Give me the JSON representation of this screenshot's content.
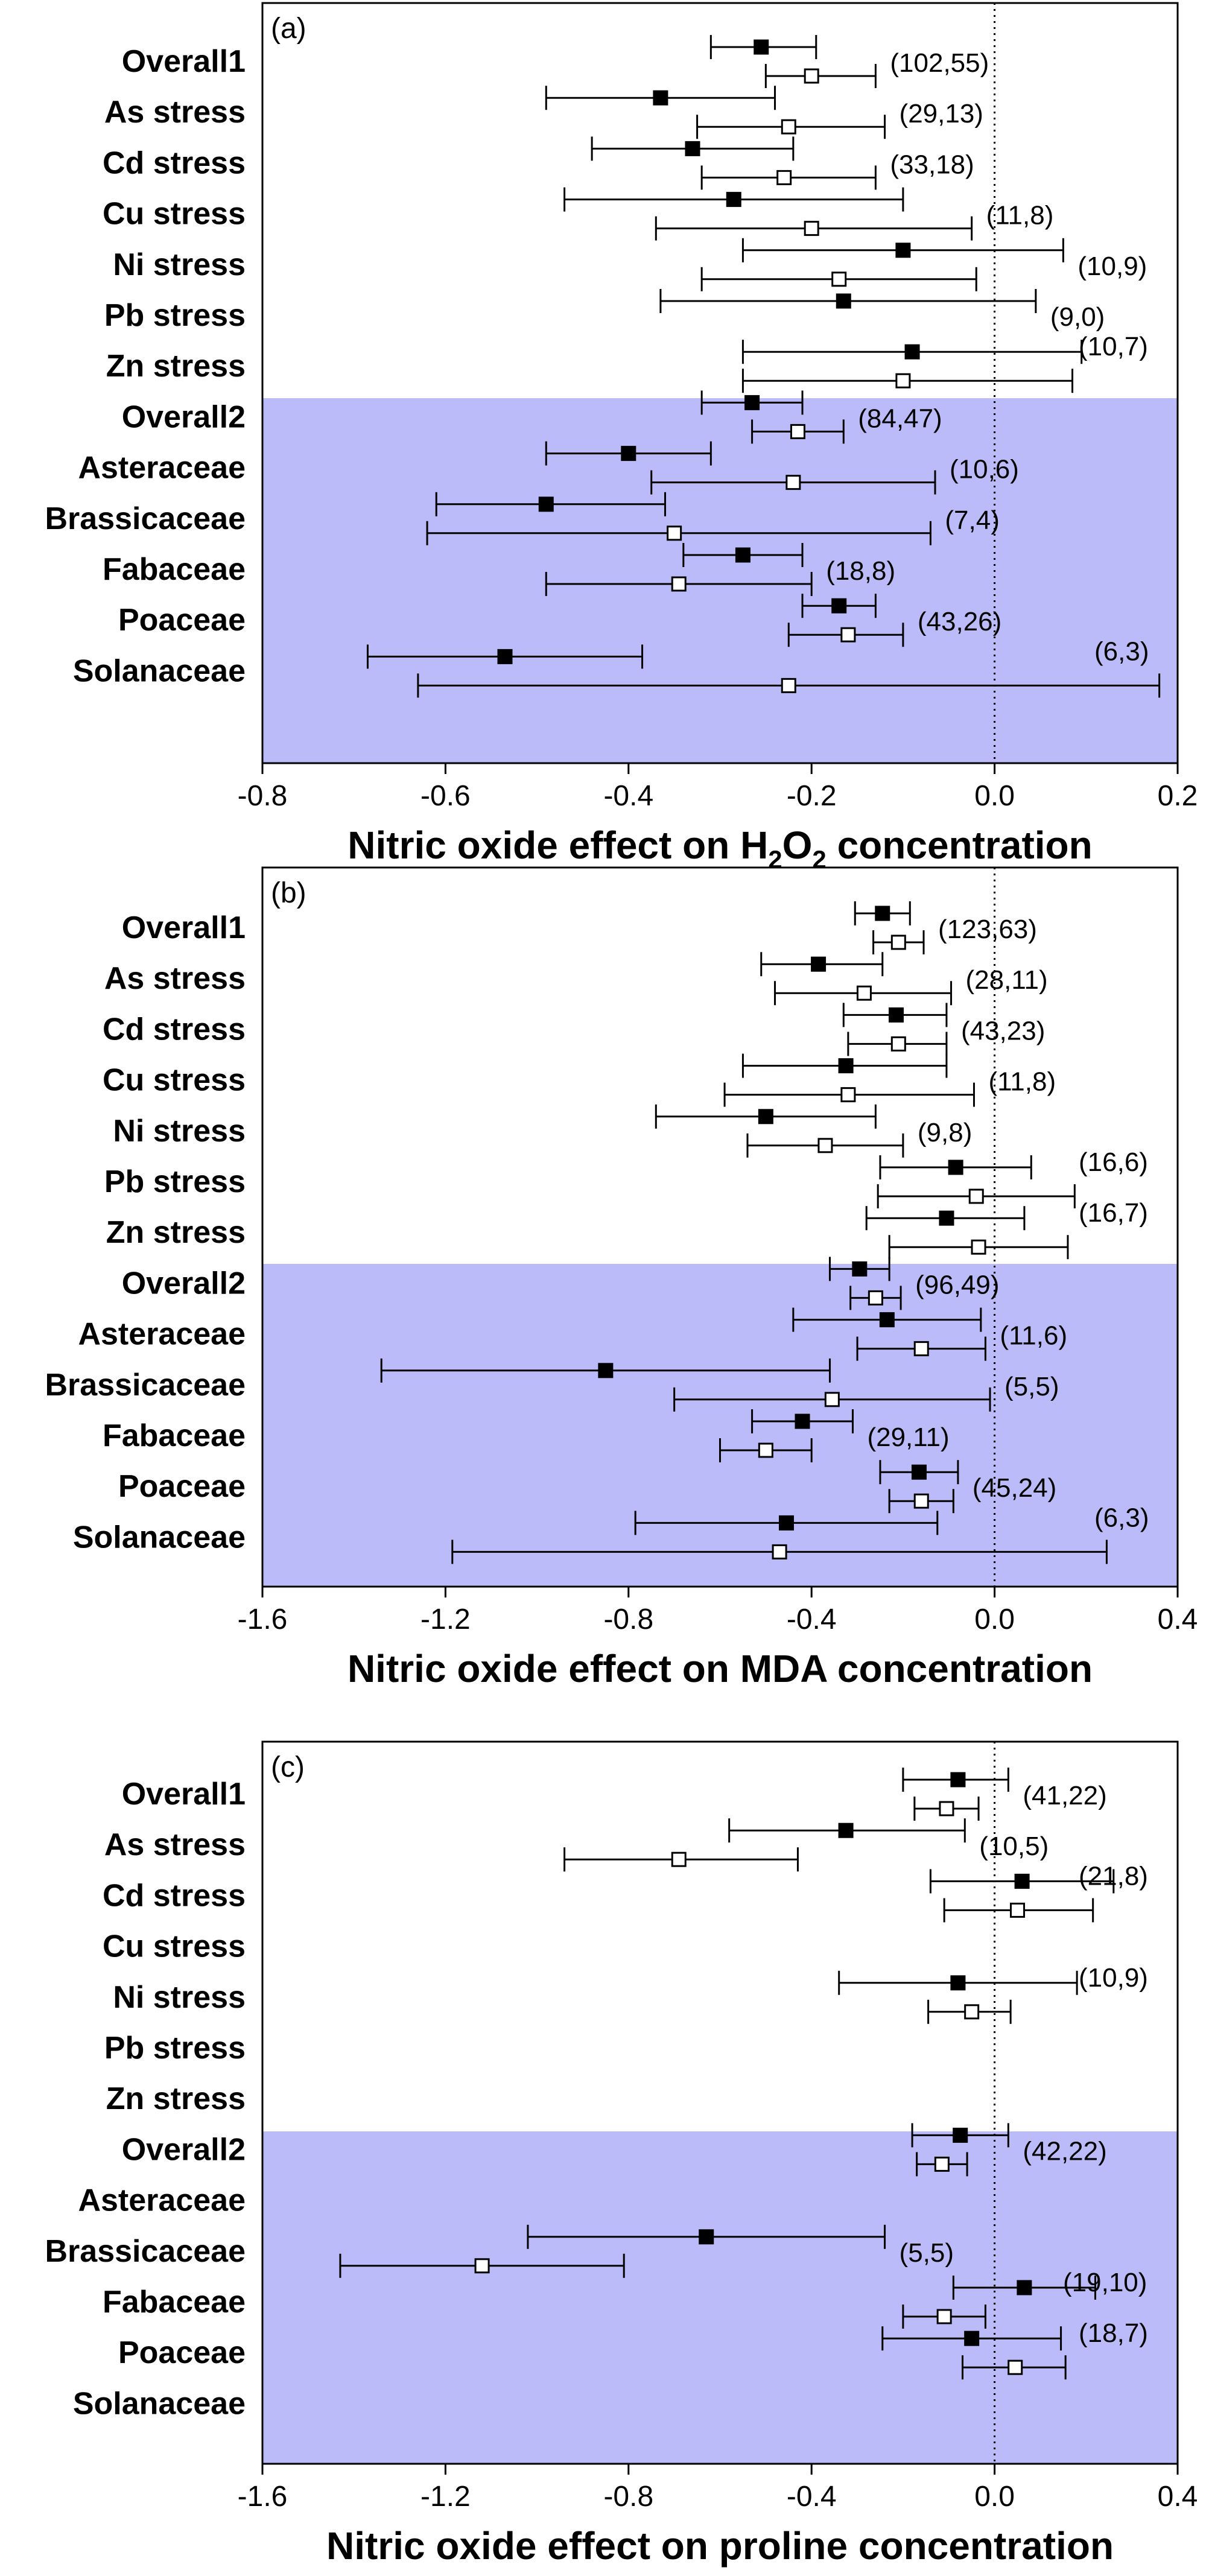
{
  "shade_color": "#bbbbf9",
  "mean_a_marker": "filled-square",
  "mean_b_marker": "open-square",
  "chart_data": [
    {
      "type": "forest",
      "panel_label": "(a)",
      "xlabel": "Nitric oxide effect on H2O2 concentration",
      "xlabel_parts": [
        "Nitric oxide effect on H",
        "2",
        "O",
        "2",
        " concentration"
      ],
      "xlim": [
        -0.8,
        0.2
      ],
      "ticks": [
        -0.8,
        -0.6,
        -0.4,
        -0.2,
        0.0,
        0.2
      ],
      "tick_labels": [
        "-0.8",
        "-0.6",
        "-0.4",
        "-0.2",
        "0.0",
        "0.2"
      ],
      "reference_line": 0,
      "shaded_from_row": 7,
      "rows": [
        {
          "label": "Overall1",
          "a": [
            -0.255,
            -0.31,
            -0.195
          ],
          "b": [
            -0.2,
            -0.25,
            -0.13
          ],
          "count": "(102,55)"
        },
        {
          "label": "As stress",
          "a": [
            -0.365,
            -0.49,
            -0.24
          ],
          "b": [
            -0.225,
            -0.325,
            -0.12
          ],
          "count": "(29,13)"
        },
        {
          "label": "Cd stress",
          "a": [
            -0.33,
            -0.44,
            -0.22
          ],
          "b": [
            -0.23,
            -0.32,
            -0.13
          ],
          "count": "(33,18)"
        },
        {
          "label": "Cu stress",
          "a": [
            -0.285,
            -0.47,
            -0.1
          ],
          "b": [
            -0.2,
            -0.37,
            -0.025
          ],
          "count": "(11,8)"
        },
        {
          "label": "Ni stress",
          "a": [
            -0.1,
            -0.275,
            0.075
          ],
          "b": [
            -0.17,
            -0.32,
            -0.02
          ],
          "count": "(10,9)"
        },
        {
          "label": "Pb stress",
          "a": [
            -0.165,
            -0.365,
            0.045
          ],
          "b": null,
          "count": "(9,0)"
        },
        {
          "label": "Zn stress",
          "a": [
            -0.09,
            -0.275,
            0.095
          ],
          "b": [
            -0.1,
            -0.275,
            0.085
          ],
          "count": "(10,7)"
        },
        {
          "label": "Overall2",
          "a": [
            -0.265,
            -0.32,
            -0.21
          ],
          "b": [
            -0.215,
            -0.265,
            -0.165
          ],
          "count": "(84,47)"
        },
        {
          "label": "Asteraceae",
          "a": [
            -0.4,
            -0.49,
            -0.31
          ],
          "b": [
            -0.22,
            -0.375,
            -0.065
          ],
          "count": "(10,6)"
        },
        {
          "label": "Brassicaceae",
          "a": [
            -0.49,
            -0.61,
            -0.36
          ],
          "b": [
            -0.35,
            -0.62,
            -0.07
          ],
          "count": "(7,4)"
        },
        {
          "label": "Fabaceae",
          "a": [
            -0.275,
            -0.34,
            -0.21
          ],
          "b": [
            -0.345,
            -0.49,
            -0.2
          ],
          "count": "(18,8)"
        },
        {
          "label": "Poaceae",
          "a": [
            -0.17,
            -0.21,
            -0.13
          ],
          "b": [
            -0.16,
            -0.225,
            -0.1
          ],
          "count": "(43,26)"
        },
        {
          "label": "Solanaceae",
          "a": [
            -0.535,
            -0.685,
            -0.385
          ],
          "b": [
            -0.225,
            -0.63,
            0.18
          ],
          "count": "(6,3)"
        }
      ]
    },
    {
      "type": "forest",
      "panel_label": "(b)",
      "xlabel": "Nitric oxide effect on MDA concentration",
      "xlabel_parts": [
        "Nitric oxide effect on MDA concentration"
      ],
      "xlim": [
        -1.6,
        0.4
      ],
      "ticks": [
        -1.6,
        -1.2,
        -0.8,
        -0.4,
        0.0,
        0.4
      ],
      "tick_labels": [
        "-1.6",
        "-1.2",
        "-0.8",
        "-0.4",
        "0.0",
        "0.4"
      ],
      "reference_line": 0,
      "shaded_from_row": 7,
      "rows": [
        {
          "label": "Overall1",
          "a": [
            -0.245,
            -0.305,
            -0.185
          ],
          "b": [
            -0.21,
            -0.265,
            -0.155
          ],
          "count": "(123,63)"
        },
        {
          "label": "As stress",
          "a": [
            -0.385,
            -0.51,
            -0.245
          ],
          "b": [
            -0.285,
            -0.48,
            -0.095
          ],
          "count": "(28,11)"
        },
        {
          "label": "Cd stress",
          "a": [
            -0.215,
            -0.33,
            -0.105
          ],
          "b": [
            -0.21,
            -0.32,
            -0.105
          ],
          "count": "(43,23)"
        },
        {
          "label": "Cu stress",
          "a": [
            -0.325,
            -0.55,
            -0.105
          ],
          "b": [
            -0.32,
            -0.59,
            -0.045
          ],
          "count": "(11,8)"
        },
        {
          "label": "Ni stress",
          "a": [
            -0.5,
            -0.74,
            -0.26
          ],
          "b": [
            -0.37,
            -0.54,
            -0.2
          ],
          "count": "(9,8)"
        },
        {
          "label": "Pb stress",
          "a": [
            -0.085,
            -0.25,
            0.08
          ],
          "b": [
            -0.04,
            -0.255,
            0.175
          ],
          "count": "(16,6)"
        },
        {
          "label": "Zn stress",
          "a": [
            -0.105,
            -0.28,
            0.065
          ],
          "b": [
            -0.035,
            -0.23,
            0.16
          ],
          "count": "(16,7)"
        },
        {
          "label": "Overall2",
          "a": [
            -0.295,
            -0.36,
            -0.23
          ],
          "b": [
            -0.26,
            -0.315,
            -0.205
          ],
          "count": "(96,49)"
        },
        {
          "label": "Asteraceae",
          "a": [
            -0.235,
            -0.44,
            -0.03
          ],
          "b": [
            -0.16,
            -0.3,
            -0.02
          ],
          "count": "(11,6)"
        },
        {
          "label": "Brassicaceae",
          "a": [
            -0.85,
            -1.34,
            -0.36
          ],
          "b": [
            -0.355,
            -0.7,
            -0.01
          ],
          "count": "(5,5)"
        },
        {
          "label": "Fabaceae",
          "a": [
            -0.42,
            -0.53,
            -0.31
          ],
          "b": [
            -0.5,
            -0.6,
            -0.4
          ],
          "count": "(29,11)"
        },
        {
          "label": "Poaceae",
          "a": [
            -0.165,
            -0.25,
            -0.08
          ],
          "b": [
            -0.16,
            -0.23,
            -0.09
          ],
          "count": "(45,24)"
        },
        {
          "label": "Solanaceae",
          "a": [
            -0.455,
            -0.785,
            -0.125
          ],
          "b": [
            -0.47,
            -1.185,
            0.245
          ],
          "count": "(6,3)"
        }
      ]
    },
    {
      "type": "forest",
      "panel_label": "(c)",
      "xlabel": "Nitric oxide effect on proline concentration",
      "xlabel_parts": [
        "Nitric oxide effect on proline concentration"
      ],
      "xlim": [
        -1.6,
        0.4
      ],
      "ticks": [
        -1.6,
        -1.2,
        -0.8,
        -0.4,
        0.0,
        0.4
      ],
      "tick_labels": [
        "-1.6",
        "-1.2",
        "-0.8",
        "-0.4",
        "0.0",
        "0.4"
      ],
      "reference_line": 0,
      "shaded_from_row": 7,
      "rows": [
        {
          "label": "Overall1",
          "a": [
            -0.08,
            -0.2,
            0.03
          ],
          "b": [
            -0.105,
            -0.175,
            -0.035
          ],
          "count": "(41,22)"
        },
        {
          "label": "As stress",
          "a": [
            -0.325,
            -0.58,
            -0.065
          ],
          "b": [
            -0.69,
            -0.94,
            -0.43
          ],
          "count": "(10,5)"
        },
        {
          "label": "Cd stress",
          "a": [
            0.06,
            -0.14,
            0.26
          ],
          "b": [
            0.05,
            -0.11,
            0.215
          ],
          "count": "(21,8)"
        },
        {
          "label": "Cu stress",
          "a": null,
          "b": null,
          "count": ""
        },
        {
          "label": "Ni stress",
          "a": [
            -0.08,
            -0.34,
            0.18
          ],
          "b": [
            -0.05,
            -0.145,
            0.035
          ],
          "count": "(10,9)"
        },
        {
          "label": "Pb stress",
          "a": null,
          "b": null,
          "count": ""
        },
        {
          "label": "Zn stress",
          "a": null,
          "b": null,
          "count": ""
        },
        {
          "label": "Overall2",
          "a": [
            -0.075,
            -0.18,
            0.03
          ],
          "b": [
            -0.115,
            -0.17,
            -0.06
          ],
          "count": "(42,22)"
        },
        {
          "label": "Asteraceae",
          "a": null,
          "b": null,
          "count": ""
        },
        {
          "label": "Brassicaceae",
          "a": [
            -0.63,
            -1.02,
            -0.24
          ],
          "b": [
            -1.12,
            -1.43,
            -0.81
          ],
          "count": "(5,5)"
        },
        {
          "label": "Fabaceae",
          "a": [
            0.065,
            -0.09,
            0.22
          ],
          "b": [
            -0.11,
            -0.2,
            -0.02
          ],
          "count": "(19,10)"
        },
        {
          "label": "Poaceae",
          "a": [
            -0.05,
            -0.245,
            0.145
          ],
          "b": [
            0.045,
            -0.07,
            0.155
          ],
          "count": "(18,7)"
        },
        {
          "label": "Solanaceae",
          "a": null,
          "b": null,
          "count": ""
        }
      ]
    }
  ]
}
